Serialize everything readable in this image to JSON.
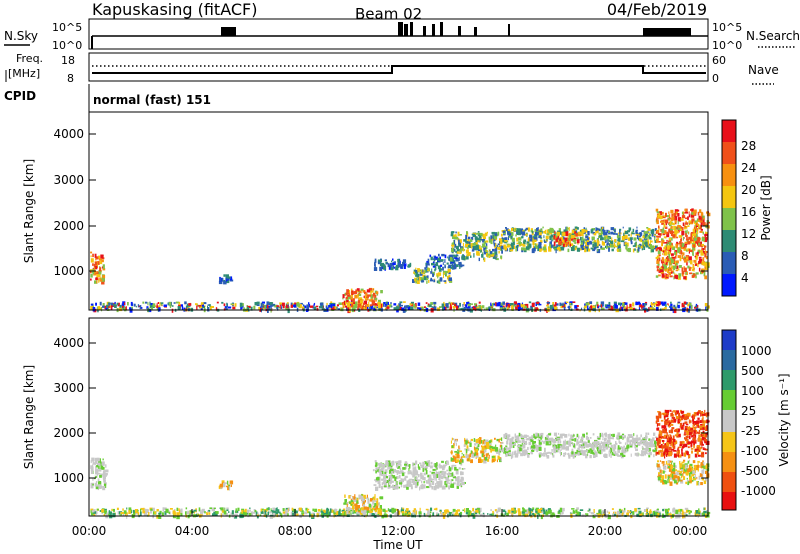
{
  "header": {
    "title": "Kapuskasing (fitACF)",
    "beam": "Beam 02",
    "date": "04/Feb/2019"
  },
  "noise_panel": {
    "left_label": "N.Sky",
    "left_ticks": [
      "10^5",
      "10^0"
    ],
    "right_ticks": [
      "10^5",
      "10^0"
    ],
    "right_label": "N.Search"
  },
  "freq_panel": {
    "left_label_line1": "Freq.",
    "left_label_line2": "[MHz]",
    "left_ticks": [
      "18",
      "8"
    ],
    "right_ticks": [
      "60",
      "0"
    ],
    "right_label": "Nave",
    "cpid_label": "CPID",
    "cpid_text": "normal (fast) 151"
  },
  "chart_data": [
    {
      "type": "heatmap",
      "quantity": "Power",
      "ylabel": "Slant Range [km]",
      "ylim": [
        180,
        4500
      ],
      "yticks": [
        1000,
        2000,
        3000,
        4000
      ],
      "xlim_hours": [
        0,
        24
      ],
      "colorbar": {
        "label": "Power [dB]",
        "range": [
          0,
          32
        ],
        "tick_labels": [
          "4",
          "8",
          "12",
          "16",
          "20",
          "24",
          "28"
        ],
        "colors": [
          "#0019ff",
          "#2a5cb5",
          "#2e8b74",
          "#7fc24a",
          "#f4c610",
          "#f79010",
          "#f0501a",
          "#e8101a"
        ]
      },
      "echo_regions": [
        {
          "t": [
            0.0,
            0.5
          ],
          "r": [
            800,
            1450
          ],
          "level": "high"
        },
        {
          "t": [
            0.0,
            24.0
          ],
          "r": [
            180,
            350
          ],
          "level": "mixed"
        },
        {
          "t": [
            5.0,
            5.5
          ],
          "r": [
            800,
            950
          ],
          "level": "low"
        },
        {
          "t": [
            9.8,
            11.3
          ],
          "r": [
            250,
            650
          ],
          "level": "high"
        },
        {
          "t": [
            11.0,
            12.5
          ],
          "r": [
            1100,
            1300
          ],
          "level": "low"
        },
        {
          "t": [
            12.5,
            14.0
          ],
          "r": [
            800,
            1100
          ],
          "level": "medium"
        },
        {
          "t": [
            13.0,
            14.5
          ],
          "r": [
            1100,
            1400
          ],
          "level": "low"
        },
        {
          "t": [
            14.0,
            16.0
          ],
          "r": [
            1300,
            1900
          ],
          "level": "medium"
        },
        {
          "t": [
            16.0,
            22.0
          ],
          "r": [
            1500,
            2000
          ],
          "level": "medium"
        },
        {
          "t": [
            18.0,
            19.0
          ],
          "r": [
            1600,
            1900
          ],
          "level": "high"
        },
        {
          "t": [
            22.0,
            24.0
          ],
          "r": [
            900,
            2400
          ],
          "level": "high"
        }
      ]
    },
    {
      "type": "heatmap",
      "quantity": "Velocity",
      "ylabel": "Slant Range [km]",
      "xlabel": "Time UT",
      "ylim": [
        180,
        4500
      ],
      "yticks": [
        1000,
        2000,
        3000,
        4000
      ],
      "xticks": [
        "00:00",
        "04:00",
        "08:00",
        "12:00",
        "16:00",
        "20:00",
        "00:00"
      ],
      "xlim_hours": [
        0,
        24
      ],
      "colorbar": {
        "label": "Velocity [m s⁻¹]",
        "tick_labels": [
          "1000",
          "500",
          "100",
          "25",
          "-25",
          "-100",
          "-500",
          "-1000"
        ],
        "colors": [
          "#1e3cc8",
          "#2a6aa0",
          "#2e9a6a",
          "#66cc33",
          "#c8c8c8",
          "#f5c518",
          "#f59012",
          "#ef5010",
          "#e81010"
        ]
      },
      "echo_regions": [
        {
          "t": [
            0.0,
            0.6
          ],
          "r": [
            800,
            1450
          ],
          "level": "ground"
        },
        {
          "t": [
            0.0,
            24.0
          ],
          "r": [
            180,
            350
          ],
          "level": "low"
        },
        {
          "t": [
            5.0,
            5.5
          ],
          "r": [
            800,
            950
          ],
          "level": "neg"
        },
        {
          "t": [
            9.8,
            11.3
          ],
          "r": [
            250,
            650
          ],
          "level": "neg"
        },
        {
          "t": [
            11.0,
            14.5
          ],
          "r": [
            800,
            1400
          ],
          "level": "ground"
        },
        {
          "t": [
            14.0,
            16.0
          ],
          "r": [
            1400,
            1900
          ],
          "level": "neg"
        },
        {
          "t": [
            16.0,
            22.0
          ],
          "r": [
            1500,
            2000
          ],
          "level": "ground"
        },
        {
          "t": [
            22.0,
            24.0
          ],
          "r": [
            1500,
            2500
          ],
          "level": "strongneg"
        },
        {
          "t": [
            22.0,
            24.0
          ],
          "r": [
            900,
            1400
          ],
          "level": "neg"
        }
      ]
    }
  ]
}
